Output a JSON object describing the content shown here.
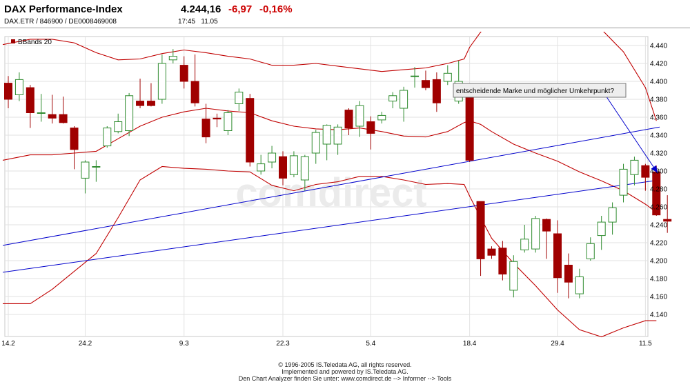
{
  "header": {
    "title": "DAX Performance-Index",
    "price": "4.244,16",
    "change": "-6,97",
    "change_pct": "-0,16%",
    "subtitle": "DAX.ETR  /  846900  /  DE0008469008",
    "time": "17:45",
    "date": "11.05"
  },
  "legend": {
    "label": "BBands 20"
  },
  "annotation": {
    "text": "entscheidende Marke und möglicher Umkehrpunkt?"
  },
  "watermark": "comdirect",
  "footer": {
    "line1": "© 1996-2005 IS.Teledata AG, all rights reserved.",
    "line2": "Implemented and powered by IS.Teledata AG.",
    "line3": "Den Chart Analyzer finden Sie unter: www.comdirect.de --> Informer --> Tools"
  },
  "colors": {
    "up": "#2e8b2e",
    "down": "#a00000",
    "bands": "#c00000",
    "trend": "#0000cc"
  },
  "chart_data": {
    "type": "candlestick",
    "ylim": [
      4140,
      4440
    ],
    "y_ticks": [
      "4.140",
      "4.160",
      "4.180",
      "4.200",
      "4.220",
      "4.240",
      "4.260",
      "4.280",
      "4.300",
      "4.320",
      "4.340",
      "4.360",
      "4.380",
      "4.400",
      "4.420",
      "4.440"
    ],
    "x_ticks": [
      {
        "label": "14.2",
        "index": 0
      },
      {
        "label": "24.2",
        "index": 7
      },
      {
        "label": "9.3",
        "index": 16
      },
      {
        "label": "22.3",
        "index": 25
      },
      {
        "label": "5.4",
        "index": 33
      },
      {
        "label": "18.4",
        "index": 42
      },
      {
        "label": "29.4",
        "index": 50
      },
      {
        "label": "11.5",
        "index": 58
      }
    ],
    "candles": [
      {
        "o": 4398,
        "h": 4406,
        "l": 4370,
        "c": 4380
      },
      {
        "o": 4385,
        "h": 4410,
        "l": 4378,
        "c": 4402
      },
      {
        "o": 4393,
        "h": 4396,
        "l": 4348,
        "c": 4365
      },
      {
        "o": 4365,
        "h": 4386,
        "l": 4355,
        "c": 4365
      },
      {
        "o": 4363,
        "h": 4385,
        "l": 4353,
        "c": 4359
      },
      {
        "o": 4363,
        "h": 4383,
        "l": 4353,
        "c": 4354
      },
      {
        "o": 4348,
        "h": 4350,
        "l": 4302,
        "c": 4324
      },
      {
        "o": 4292,
        "h": 4312,
        "l": 4275,
        "c": 4310
      },
      {
        "o": 4305,
        "h": 4312,
        "l": 4288,
        "c": 4305
      },
      {
        "o": 4328,
        "h": 4350,
        "l": 4326,
        "c": 4348
      },
      {
        "o": 4344,
        "h": 4364,
        "l": 4342,
        "c": 4355
      },
      {
        "o": 4345,
        "h": 4387,
        "l": 4339,
        "c": 4384
      },
      {
        "o": 4378,
        "h": 4403,
        "l": 4370,
        "c": 4373
      },
      {
        "o": 4378,
        "h": 4398,
        "l": 4372,
        "c": 4373
      },
      {
        "o": 4380,
        "h": 4430,
        "l": 4375,
        "c": 4420
      },
      {
        "o": 4424,
        "h": 4436,
        "l": 4420,
        "c": 4428
      },
      {
        "o": 4418,
        "h": 4428,
        "l": 4392,
        "c": 4400
      },
      {
        "o": 4400,
        "h": 4430,
        "l": 4372,
        "c": 4376
      },
      {
        "o": 4358,
        "h": 4375,
        "l": 4331,
        "c": 4338
      },
      {
        "o": 4359,
        "h": 4364,
        "l": 4349,
        "c": 4358
      },
      {
        "o": 4345,
        "h": 4368,
        "l": 4340,
        "c": 4365
      },
      {
        "o": 4375,
        "h": 4392,
        "l": 4367,
        "c": 4388
      },
      {
        "o": 4381,
        "h": 4386,
        "l": 4305,
        "c": 4310
      },
      {
        "o": 4300,
        "h": 4318,
        "l": 4296,
        "c": 4308
      },
      {
        "o": 4310,
        "h": 4328,
        "l": 4303,
        "c": 4320
      },
      {
        "o": 4316,
        "h": 4322,
        "l": 4284,
        "c": 4292
      },
      {
        "o": 4296,
        "h": 4322,
        "l": 4293,
        "c": 4317
      },
      {
        "o": 4290,
        "h": 4318,
        "l": 4278,
        "c": 4316
      },
      {
        "o": 4320,
        "h": 4346,
        "l": 4308,
        "c": 4343
      },
      {
        "o": 4330,
        "h": 4352,
        "l": 4312,
        "c": 4351
      },
      {
        "o": 4330,
        "h": 4352,
        "l": 4318,
        "c": 4349
      },
      {
        "o": 4368,
        "h": 4370,
        "l": 4340,
        "c": 4348
      },
      {
        "o": 4350,
        "h": 4378,
        "l": 4338,
        "c": 4373
      },
      {
        "o": 4355,
        "h": 4361,
        "l": 4324,
        "c": 4342
      },
      {
        "o": 4357,
        "h": 4366,
        "l": 4353,
        "c": 4362
      },
      {
        "o": 4378,
        "h": 4388,
        "l": 4370,
        "c": 4384
      },
      {
        "o": 4370,
        "h": 4394,
        "l": 4355,
        "c": 4390
      },
      {
        "o": 4406,
        "h": 4416,
        "l": 4393,
        "c": 4406
      },
      {
        "o": 4401,
        "h": 4412,
        "l": 4390,
        "c": 4393
      },
      {
        "o": 4402,
        "h": 4410,
        "l": 4366,
        "c": 4376
      },
      {
        "o": 4400,
        "h": 4418,
        "l": 4396,
        "c": 4409
      },
      {
        "o": 4378,
        "h": 4423,
        "l": 4375,
        "c": 4400
      },
      {
        "o": 4382,
        "h": 4385,
        "l": 4310,
        "c": 4312
      },
      {
        "o": 4266,
        "h": 4266,
        "l": 4183,
        "c": 4202
      },
      {
        "o": 4213,
        "h": 4216,
        "l": 4202,
        "c": 4206
      },
      {
        "o": 4214,
        "h": 4222,
        "l": 4178,
        "c": 4185
      },
      {
        "o": 4167,
        "h": 4206,
        "l": 4159,
        "c": 4199
      },
      {
        "o": 4212,
        "h": 4240,
        "l": 4209,
        "c": 4224
      },
      {
        "o": 4213,
        "h": 4250,
        "l": 4209,
        "c": 4247
      },
      {
        "o": 4246,
        "h": 4247,
        "l": 4202,
        "c": 4233
      },
      {
        "o": 4230,
        "h": 4245,
        "l": 4164,
        "c": 4181
      },
      {
        "o": 4195,
        "h": 4208,
        "l": 4158,
        "c": 4176
      },
      {
        "o": 4163,
        "h": 4191,
        "l": 4158,
        "c": 4182
      },
      {
        "o": 4202,
        "h": 4226,
        "l": 4200,
        "c": 4219
      },
      {
        "o": 4228,
        "h": 4250,
        "l": 4212,
        "c": 4243
      },
      {
        "o": 4243,
        "h": 4265,
        "l": 4229,
        "c": 4259
      },
      {
        "o": 4273,
        "h": 4308,
        "l": 4265,
        "c": 4302
      },
      {
        "o": 4296,
        "h": 4316,
        "l": 4284,
        "c": 4312
      },
      {
        "o": 4306,
        "h": 4308,
        "l": 4278,
        "c": 4293
      },
      {
        "o": 4299,
        "h": 4306,
        "l": 4250,
        "c": 4251
      },
      {
        "o": 4246,
        "h": 4273,
        "l": 4231,
        "c": 4244
      }
    ],
    "bollinger": {
      "x_index": [
        -0.5,
        2,
        4,
        6,
        8,
        10,
        12,
        14,
        16,
        18,
        20,
        22,
        24,
        26,
        28,
        30,
        32,
        34,
        36,
        38,
        40,
        41.5,
        42,
        43,
        44,
        46,
        48,
        50,
        52,
        54,
        56,
        58,
        59
      ],
      "upper": [
        4441,
        4447,
        4447,
        4443,
        4432,
        4424,
        4425,
        4431,
        4435,
        4432,
        4428,
        4425,
        4418,
        4418,
        4420,
        4417,
        4414,
        4411,
        4413,
        4415,
        4420,
        4425,
        4438,
        4455,
        4465,
        4466,
        4466,
        4466,
        4466,
        4458,
        4433,
        4393,
        4356
      ],
      "middle": [
        4312,
        4318,
        4318,
        4320,
        4322,
        4336,
        4350,
        4360,
        4366,
        4370,
        4367,
        4365,
        4356,
        4350,
        4347,
        4346,
        4348,
        4344,
        4339,
        4338,
        4344,
        4354,
        4356,
        4352,
        4344,
        4330,
        4320,
        4311,
        4299,
        4289,
        4278,
        4263,
        4254
      ],
      "lower": [
        4152,
        4152,
        4168,
        4188,
        4208,
        4248,
        4290,
        4305,
        4303,
        4302,
        4300,
        4299,
        4284,
        4278,
        4285,
        4288,
        4294,
        4294,
        4290,
        4285,
        4286,
        4285,
        4272,
        4248,
        4225,
        4197,
        4172,
        4145,
        4123,
        4115,
        4125,
        4133,
        4133
      ]
    },
    "trendlines": [
      {
        "x_index": [
          -0.5,
          59.3
        ],
        "y": [
          4217,
          4349
        ]
      },
      {
        "x_index": [
          -0.5,
          59.3
        ],
        "y": [
          4187,
          4290
        ]
      }
    ],
    "arrow": {
      "from_index": 54.5,
      "from_y": 4382,
      "to_index": 59.1,
      "to_y": 4298
    }
  }
}
